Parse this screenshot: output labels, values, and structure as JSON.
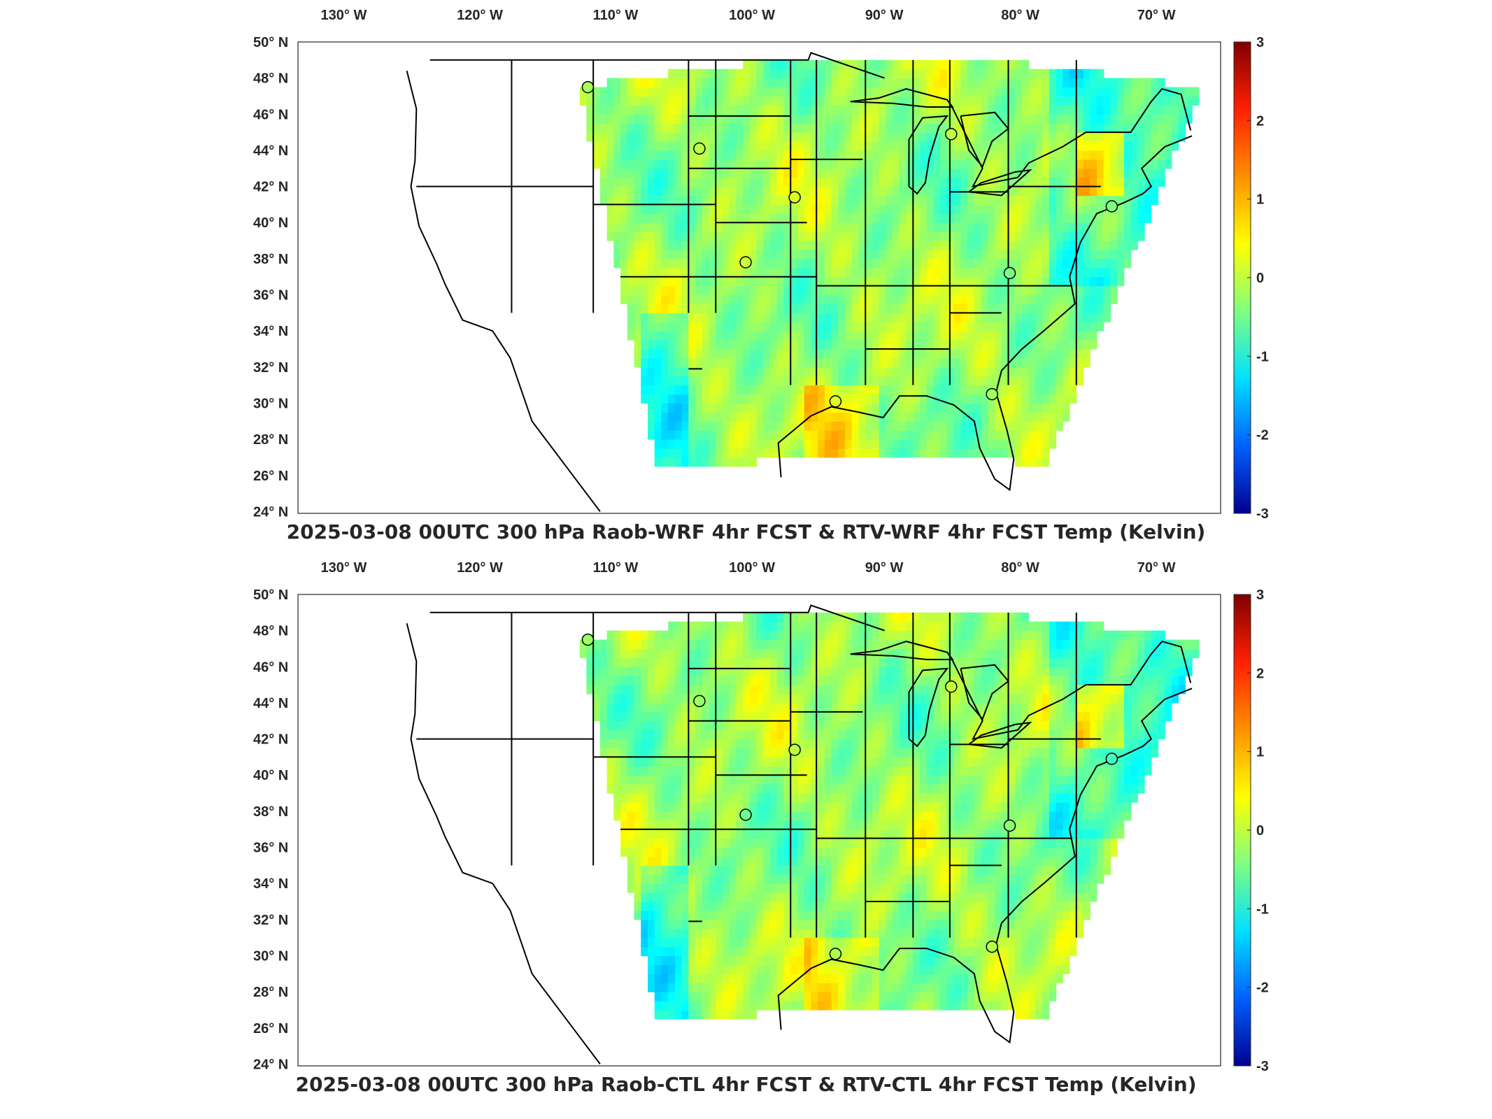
{
  "colorbar": {
    "ticks": [
      "3",
      "2",
      "1",
      "0",
      "-1",
      "-2",
      "-3"
    ],
    "colormap": "jet",
    "colors": [
      "#800000",
      "#ff2000",
      "#ff9000",
      "#ffff00",
      "#80ff80",
      "#00e0ff",
      "#0060ff",
      "#000090"
    ]
  },
  "lon_ticks": [
    "130",
    "120",
    "110",
    "100",
    "90",
    "80",
    "70"
  ],
  "lon_suffix": "W",
  "lat_ticks": [
    "50",
    "48",
    "46",
    "44",
    "42",
    "40",
    "38",
    "36",
    "34",
    "32",
    "30",
    "28",
    "26",
    "24"
  ],
  "lat_suffix": "N",
  "panels": [
    {
      "title": "2025-03-08 00UTC 300 hPa Raob-WRF 4hr FCST & RTV-WRF 4hr FCST Temp (Kelvin)"
    },
    {
      "title": "2025-03-08 00UTC 300 hPa Raob-CTL 4hr FCST & RTV-CTL 4hr FCST Temp (Kelvin)"
    }
  ],
  "raob_stations": [
    {
      "lon": -111.4,
      "lat": 47.5
    },
    {
      "lon": -103.2,
      "lat": 44.1
    },
    {
      "lon": -96.2,
      "lat": 41.4
    },
    {
      "lon": -99.8,
      "lat": 37.8
    },
    {
      "lon": -93.2,
      "lat": 30.1
    },
    {
      "lon": -84.7,
      "lat": 44.9
    },
    {
      "lon": -80.4,
      "lat": 37.2
    },
    {
      "lon": -81.7,
      "lat": 30.5
    },
    {
      "lon": -72.9,
      "lat": 40.9
    }
  ]
}
